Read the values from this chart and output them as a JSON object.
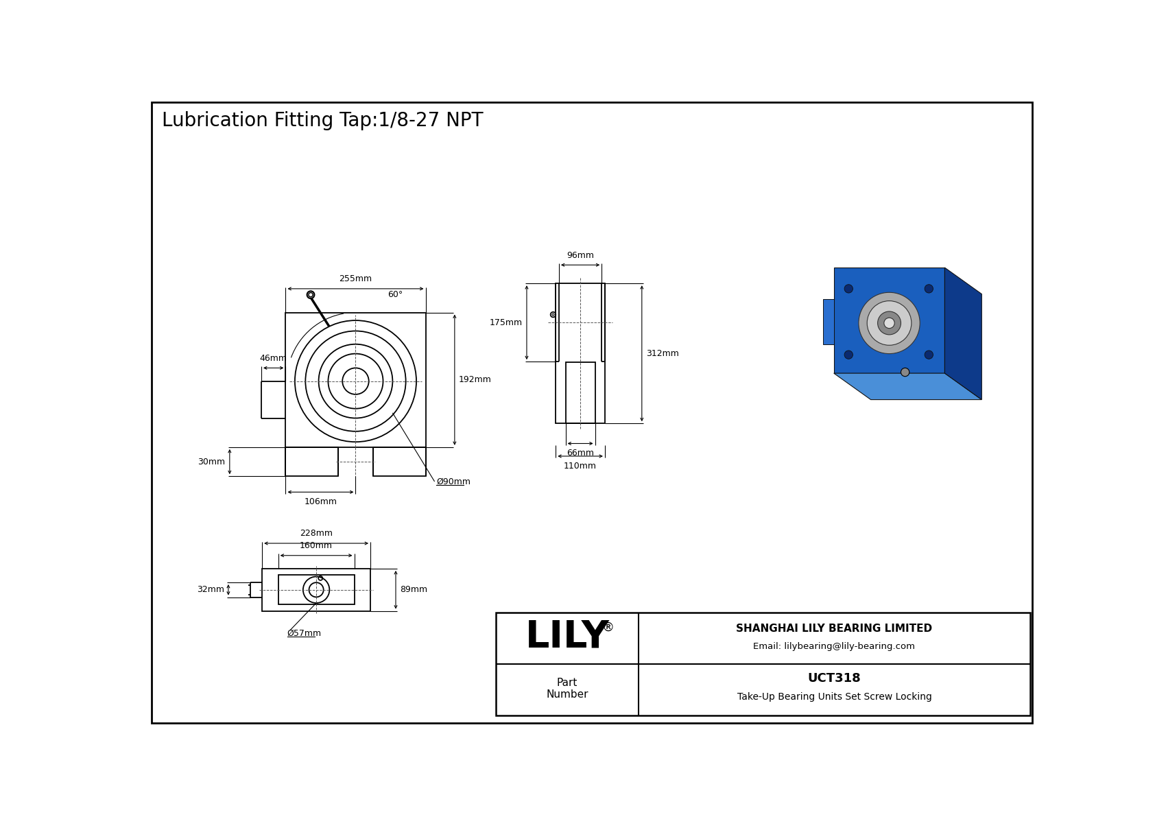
{
  "title": "Lubrication Fitting Tap:1/8-27 NPT",
  "background_color": "#ffffff",
  "line_color": "#000000",
  "company": "SHANGHAI LILY BEARING LIMITED",
  "email": "Email: lilybearing@lily-bearing.com",
  "part_number_label": "Part\nNumber",
  "part_number": "UCT318",
  "description": "Take-Up Bearing Units Set Screw Locking",
  "dim_255": "255mm",
  "dim_46": "46mm",
  "dim_192": "192mm",
  "dim_30": "30mm",
  "dim_106": "106mm",
  "dim_90": "Ø90mm",
  "dim_60": "60°",
  "dim_96": "96mm",
  "dim_175": "175mm",
  "dim_312": "312mm",
  "dim_66": "66mm",
  "dim_110": "110mm",
  "dim_228": "228mm",
  "dim_160": "160mm",
  "dim_89": "89mm",
  "dim_32": "32mm",
  "dim_57": "Ø57mm"
}
